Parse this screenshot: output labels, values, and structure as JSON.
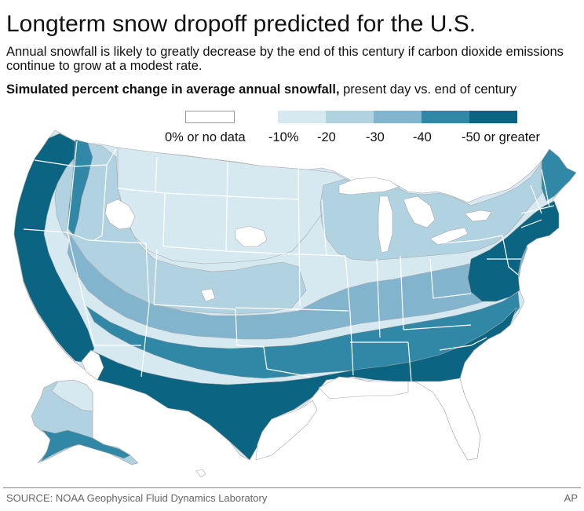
{
  "header": {
    "title": "Longterm snow dropoff predicted for the U.S.",
    "subtitle": "Annual snowfall is likely to greatly decrease by the end of this century if carbon dioxide emissions continue to grow at a modest rate.",
    "legend_title_bold": "Simulated percent change in average annual snowfall,",
    "legend_title_rest": " present day vs. end of century"
  },
  "legend": {
    "items": [
      {
        "label": "0% or no data",
        "color": "#ffffff"
      },
      {
        "label": "-10%",
        "color": "#d6e9f1"
      },
      {
        "label": "-20",
        "color": "#b1d2e1"
      },
      {
        "label": "-30",
        "color": "#82b4ce"
      },
      {
        "label": "-40",
        "color": "#3088a6"
      },
      {
        "label": "-50 or greater",
        "color": "#0b6481"
      }
    ]
  },
  "colors": {
    "none": "#ffffff",
    "pct10": "#d6e9f1",
    "pct20": "#b1d2e1",
    "pct30": "#82b4ce",
    "pct40": "#3088a6",
    "pct50": "#0b6481",
    "boundary": "#ffffff",
    "outline": "#a8a8a8"
  },
  "footer": {
    "source": "SOURCE: NOAA Geophysical Fluid Dynamics Laboratory",
    "credit": "AP"
  }
}
